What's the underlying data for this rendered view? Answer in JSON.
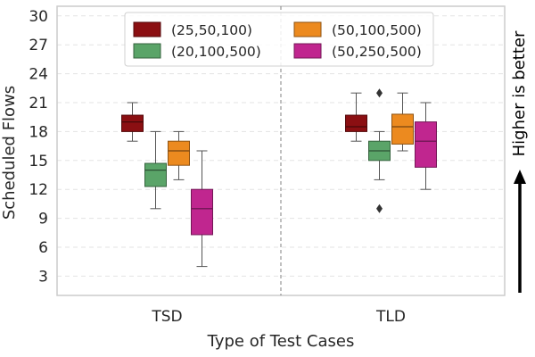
{
  "chart_data": {
    "type": "box",
    "xlabel": "Type of Test Cases",
    "ylabel": "Scheduled Flows",
    "ylim": [
      1,
      31
    ],
    "yticks": [
      3,
      6,
      9,
      12,
      15,
      18,
      21,
      24,
      27,
      30
    ],
    "categories": [
      "TSD",
      "TLD"
    ],
    "grid": true,
    "legend_position": "top-center",
    "annotation": "Higher is better",
    "series": [
      {
        "name": "(25,50,100)",
        "color": "#8b0f12",
        "boxes": [
          {
            "category": "TSD",
            "whisker_low": 17,
            "q1": 18,
            "median": 19,
            "q3": 19.7,
            "whisker_high": 21,
            "outliers": []
          },
          {
            "category": "TLD",
            "whisker_low": 17,
            "q1": 18,
            "median": 18.5,
            "q3": 19.7,
            "whisker_high": 22,
            "outliers": []
          }
        ]
      },
      {
        "name": "(20,100,500)",
        "color": "#5aa468",
        "boxes": [
          {
            "category": "TSD",
            "whisker_low": 10,
            "q1": 12.3,
            "median": 14,
            "q3": 14.7,
            "whisker_high": 18,
            "outliers": []
          },
          {
            "category": "TLD",
            "whisker_low": 13,
            "q1": 15,
            "median": 16,
            "q3": 17,
            "whisker_high": 18,
            "outliers": [
              22,
              10
            ]
          }
        ]
      },
      {
        "name": "(50,100,500)",
        "color": "#ec8a1f",
        "boxes": [
          {
            "category": "TSD",
            "whisker_low": 13,
            "q1": 14.5,
            "median": 16,
            "q3": 17,
            "whisker_high": 18,
            "outliers": []
          },
          {
            "category": "TLD",
            "whisker_low": 16,
            "q1": 16.7,
            "median": 18.5,
            "q3": 19.8,
            "whisker_high": 22,
            "outliers": []
          }
        ]
      },
      {
        "name": "(50,250,500)",
        "color": "#c0268f",
        "boxes": [
          {
            "category": "TSD",
            "whisker_low": 4,
            "q1": 7.3,
            "median": 10,
            "q3": 12,
            "whisker_high": 16,
            "outliers": []
          },
          {
            "category": "TLD",
            "whisker_low": 12,
            "q1": 14.3,
            "median": 17,
            "q3": 19,
            "whisker_high": 21,
            "outliers": []
          }
        ]
      }
    ]
  }
}
